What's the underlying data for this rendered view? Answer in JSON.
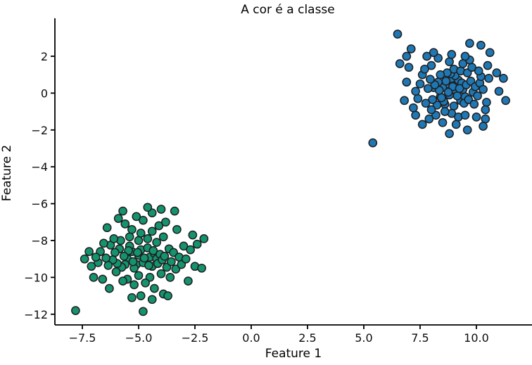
{
  "chart_data": {
    "type": "scatter",
    "title": "A cor é a classe",
    "xlabel": "Feature 1",
    "ylabel": "Feature 2",
    "xlim": [
      -8.72,
      12.47
    ],
    "ylim": [
      -12.58,
      4.06
    ],
    "grid": false,
    "legend": "none",
    "axis_color": "#000000",
    "background": "#ffffff",
    "x_ticks": [
      {
        "v": -7.5,
        "label": "−7.5"
      },
      {
        "v": -5.0,
        "label": "−5.0"
      },
      {
        "v": -2.5,
        "label": "−2.5"
      },
      {
        "v": 0.0,
        "label": "0.0"
      },
      {
        "v": 2.5,
        "label": "2.5"
      },
      {
        "v": 5.0,
        "label": "5.0"
      },
      {
        "v": 7.5,
        "label": "7.5"
      },
      {
        "v": 10.0,
        "label": "10.0"
      }
    ],
    "y_ticks": [
      {
        "v": 2,
        "label": "2"
      },
      {
        "v": 0,
        "label": "0"
      },
      {
        "v": -2,
        "label": "−2"
      },
      {
        "v": -4,
        "label": "−4"
      },
      {
        "v": -6,
        "label": "−6"
      },
      {
        "v": -8,
        "label": "−8"
      },
      {
        "v": -10,
        "label": "−10"
      },
      {
        "v": -12,
        "label": "−12"
      }
    ],
    "series": [
      {
        "name": "green-cluster",
        "color": "#14936e",
        "edge": "#1f1f1f",
        "points": [
          [
            -5.0,
            -8.8
          ],
          [
            -4.7,
            -9.1
          ],
          [
            -5.3,
            -8.6
          ],
          [
            -4.5,
            -8.9
          ],
          [
            -5.1,
            -9.3
          ],
          [
            -4.9,
            -8.5
          ],
          [
            -5.5,
            -9.0
          ],
          [
            -4.3,
            -8.7
          ],
          [
            -5.2,
            -9.5
          ],
          [
            -4.8,
            -9.2
          ],
          [
            -4.6,
            -8.4
          ],
          [
            -5.4,
            -8.3
          ],
          [
            -4.4,
            -9.4
          ],
          [
            -5.6,
            -9.3
          ],
          [
            -4.2,
            -9.0
          ],
          [
            -5.05,
            -8.65
          ],
          [
            -4.75,
            -8.95
          ],
          [
            -5.25,
            -9.15
          ],
          [
            -4.55,
            -9.35
          ],
          [
            -5.45,
            -8.55
          ],
          [
            -4.35,
            -8.55
          ],
          [
            -5.65,
            -8.85
          ],
          [
            -4.15,
            -9.25
          ],
          [
            -5.75,
            -9.45
          ],
          [
            -4.05,
            -8.75
          ],
          [
            -5.85,
            -8.45
          ],
          [
            -3.95,
            -9.05
          ],
          [
            -5.95,
            -9.25
          ],
          [
            -3.85,
            -8.85
          ],
          [
            -6.05,
            -8.65
          ],
          [
            -3.75,
            -9.45
          ],
          [
            -6.15,
            -9.05
          ],
          [
            -3.65,
            -8.45
          ],
          [
            -6.25,
            -8.25
          ],
          [
            -3.55,
            -9.15
          ],
          [
            -6.35,
            -9.35
          ],
          [
            -3.45,
            -8.65
          ],
          [
            -6.45,
            -8.95
          ],
          [
            -3.35,
            -9.55
          ],
          [
            -6.55,
            -8.15
          ],
          [
            -5.0,
            -8.0
          ],
          [
            -4.6,
            -7.9
          ],
          [
            -5.4,
            -7.8
          ],
          [
            -4.2,
            -8.1
          ],
          [
            -5.8,
            -8.0
          ],
          [
            -3.9,
            -7.8
          ],
          [
            -6.1,
            -7.9
          ],
          [
            -4.9,
            -7.6
          ],
          [
            -4.4,
            -7.5
          ],
          [
            -5.3,
            -7.4
          ],
          [
            -5.0,
            -9.9
          ],
          [
            -4.5,
            -10.0
          ],
          [
            -5.5,
            -10.1
          ],
          [
            -4.0,
            -9.8
          ],
          [
            -6.0,
            -9.7
          ],
          [
            -3.6,
            -10.0
          ],
          [
            -5.2,
            -10.4
          ],
          [
            -4.7,
            -10.3
          ],
          [
            -4.3,
            -10.6
          ],
          [
            -5.7,
            -10.2
          ],
          [
            -6.7,
            -8.6
          ],
          [
            -6.8,
            -9.2
          ],
          [
            -6.9,
            -8.9
          ],
          [
            -7.1,
            -9.4
          ],
          [
            -7.2,
            -8.6
          ],
          [
            -3.2,
            -8.9
          ],
          [
            -3.1,
            -9.3
          ],
          [
            -3.0,
            -8.3
          ],
          [
            -2.9,
            -9.0
          ],
          [
            -2.7,
            -8.5
          ],
          [
            -4.1,
            -7.2
          ],
          [
            -5.6,
            -7.1
          ],
          [
            -4.8,
            -6.9
          ],
          [
            -3.8,
            -7.0
          ],
          [
            -5.1,
            -6.7
          ],
          [
            -4.4,
            -6.5
          ],
          [
            -4.0,
            -6.3
          ],
          [
            -3.4,
            -6.4
          ],
          [
            -4.9,
            -11.0
          ],
          [
            -4.4,
            -11.2
          ],
          [
            -5.3,
            -11.1
          ],
          [
            -3.9,
            -10.9
          ],
          [
            -2.5,
            -9.4
          ],
          [
            -2.4,
            -8.2
          ],
          [
            -2.2,
            -9.5
          ],
          [
            -7.4,
            -9.0
          ],
          [
            -6.6,
            -10.1
          ],
          [
            -7.0,
            -10.0
          ],
          [
            -6.3,
            -10.6
          ],
          [
            -2.1,
            -7.9
          ],
          [
            -7.8,
            -11.8
          ],
          [
            -4.8,
            -11.85
          ],
          [
            -5.9,
            -6.8
          ],
          [
            -6.4,
            -7.3
          ],
          [
            -3.3,
            -7.4
          ],
          [
            -2.6,
            -7.7
          ],
          [
            -5.7,
            -6.4
          ],
          [
            -4.6,
            -6.2
          ],
          [
            -3.7,
            -11.0
          ],
          [
            -2.8,
            -10.2
          ]
        ]
      },
      {
        "name": "blue-cluster",
        "color": "#1f77b4",
        "edge": "#1f1f1f",
        "points": [
          [
            8.1,
            0.3
          ],
          [
            8.4,
            -0.2
          ],
          [
            8.7,
            0.5
          ],
          [
            9.0,
            0.1
          ],
          [
            9.3,
            -0.4
          ],
          [
            8.9,
            0.8
          ],
          [
            9.1,
            0.4
          ],
          [
            8.6,
            -0.6
          ],
          [
            9.4,
            0.2
          ],
          [
            8.8,
            -0.1
          ],
          [
            9.2,
            0.7
          ],
          [
            8.5,
            0.3
          ],
          [
            9.0,
            -0.7
          ],
          [
            9.5,
            -0.2
          ],
          [
            8.3,
            0.6
          ],
          [
            8.95,
            0.35
          ],
          [
            9.15,
            -0.15
          ],
          [
            8.75,
            0.05
          ],
          [
            9.35,
            0.55
          ],
          [
            8.55,
            -0.45
          ],
          [
            9.05,
            0.95
          ],
          [
            8.65,
            0.65
          ],
          [
            9.25,
            0.25
          ],
          [
            8.45,
            -0.25
          ],
          [
            9.45,
            -0.55
          ],
          [
            8.85,
            1.05
          ],
          [
            9.55,
            0.45
          ],
          [
            8.35,
            0.15
          ],
          [
            9.65,
            -0.35
          ],
          [
            8.25,
            -0.65
          ],
          [
            9.75,
            0.65
          ],
          [
            8.15,
            0.45
          ],
          [
            9.85,
            0.05
          ],
          [
            8.05,
            -0.35
          ],
          [
            9.95,
            0.35
          ],
          [
            7.95,
            0.75
          ],
          [
            10.05,
            -0.15
          ],
          [
            7.85,
            0.25
          ],
          [
            10.15,
            0.55
          ],
          [
            7.75,
            -0.55
          ],
          [
            9.0,
            1.3
          ],
          [
            8.7,
            1.1
          ],
          [
            9.3,
            1.2
          ],
          [
            8.4,
            1.0
          ],
          [
            9.6,
            1.1
          ],
          [
            8.9,
            -1.1
          ],
          [
            9.2,
            -1.3
          ],
          [
            8.6,
            -1.0
          ],
          [
            9.5,
            -1.2
          ],
          [
            8.2,
            -1.2
          ],
          [
            10.3,
            0.2
          ],
          [
            10.45,
            -0.5
          ],
          [
            10.2,
            0.9
          ],
          [
            7.5,
            0.5
          ],
          [
            7.4,
            -0.3
          ],
          [
            7.6,
            1.0
          ],
          [
            7.3,
            0.1
          ],
          [
            10.55,
            0.8
          ],
          [
            10.4,
            -1.4
          ],
          [
            7.2,
            -0.8
          ],
          [
            8.0,
            1.5
          ],
          [
            9.8,
            1.4
          ],
          [
            8.8,
            1.7
          ],
          [
            9.4,
            1.6
          ],
          [
            7.9,
            -1.4
          ],
          [
            10.0,
            -1.3
          ],
          [
            8.5,
            -1.6
          ],
          [
            9.1,
            -1.7
          ],
          [
            7.7,
            1.3
          ],
          [
            10.1,
            1.2
          ],
          [
            8.3,
            1.9
          ],
          [
            9.7,
            1.8
          ],
          [
            7.6,
            -1.7
          ],
          [
            10.3,
            -1.8
          ],
          [
            8.9,
            2.1
          ],
          [
            9.5,
            2.0
          ],
          [
            8.1,
            2.2
          ],
          [
            7.8,
            2.0
          ],
          [
            10.5,
            1.5
          ],
          [
            10.9,
            1.1
          ],
          [
            6.9,
            0.6
          ],
          [
            6.8,
            -0.4
          ],
          [
            7.0,
            1.4
          ],
          [
            11.0,
            0.1
          ],
          [
            11.2,
            0.8
          ],
          [
            11.3,
            -0.4
          ],
          [
            6.6,
            1.6
          ],
          [
            6.5,
            3.2
          ],
          [
            9.7,
            2.7
          ],
          [
            10.6,
            2.2
          ],
          [
            5.4,
            -2.7
          ],
          [
            8.8,
            -2.2
          ],
          [
            9.6,
            -2.0
          ],
          [
            7.1,
            2.4
          ],
          [
            10.4,
            -0.9
          ],
          [
            6.9,
            2.0
          ],
          [
            7.3,
            -1.2
          ],
          [
            10.2,
            2.6
          ],
          [
            9.9,
            -0.6
          ],
          [
            8.0,
            -0.9
          ]
        ]
      }
    ]
  }
}
